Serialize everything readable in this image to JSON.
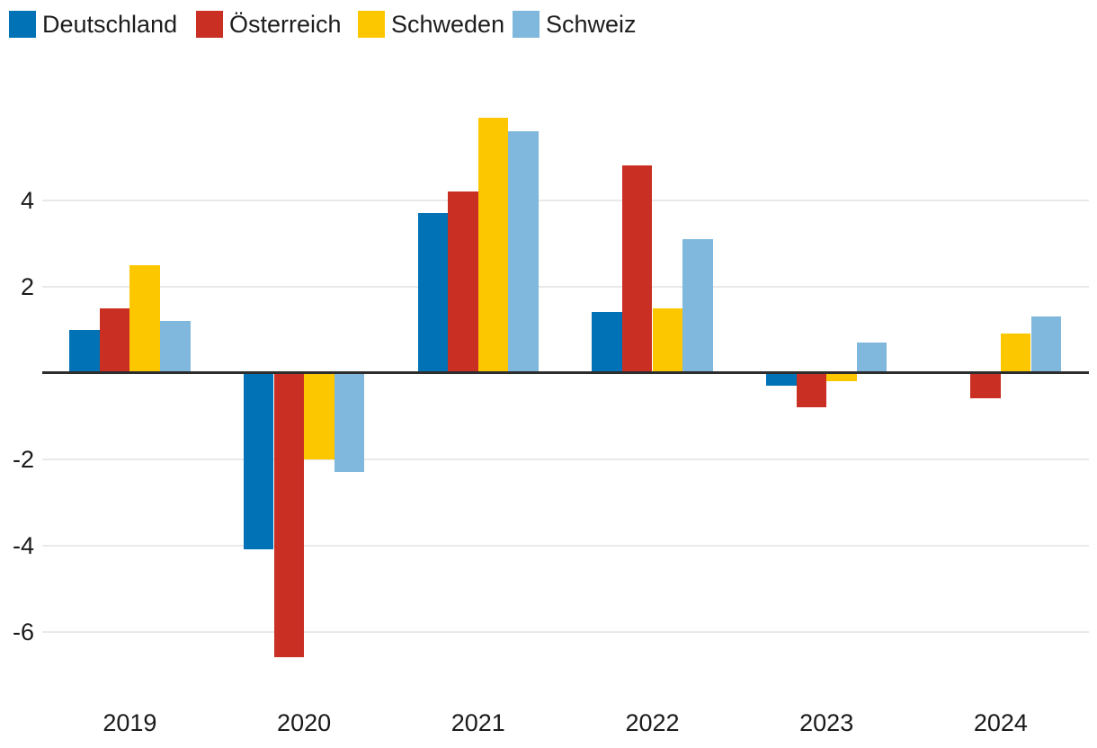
{
  "chart_data": {
    "type": "bar",
    "title": "",
    "xlabel": "",
    "ylabel": "",
    "categories": [
      "2019",
      "2020",
      "2021",
      "2022",
      "2023",
      "2024"
    ],
    "series": [
      {
        "name": "Deutschland",
        "color": "#0072B5",
        "values": [
          1.0,
          -4.1,
          3.7,
          1.4,
          -0.3,
          0.0
        ]
      },
      {
        "name": "Österreich",
        "color": "#C92F22",
        "values": [
          1.5,
          -6.6,
          4.2,
          4.8,
          -0.8,
          -0.6
        ]
      },
      {
        "name": "Schweden",
        "color": "#FDC700",
        "values": [
          2.5,
          -2.0,
          5.9,
          1.5,
          -0.2,
          0.9
        ]
      },
      {
        "name": "Schweiz",
        "color": "#7FB8DC",
        "values": [
          1.2,
          -2.3,
          5.6,
          3.1,
          0.7,
          1.3
        ]
      }
    ],
    "yticks": [
      4,
      2,
      -2,
      -4,
      -6
    ],
    "ylim": [
      -7.0,
      6.4
    ],
    "grid": true,
    "legend_position": "top-left",
    "colors": {
      "background": "#FFFFFF",
      "gridline": "#E9E9E9",
      "zero_axis": "#2D2D2D",
      "text": "#1A1A1A"
    }
  }
}
